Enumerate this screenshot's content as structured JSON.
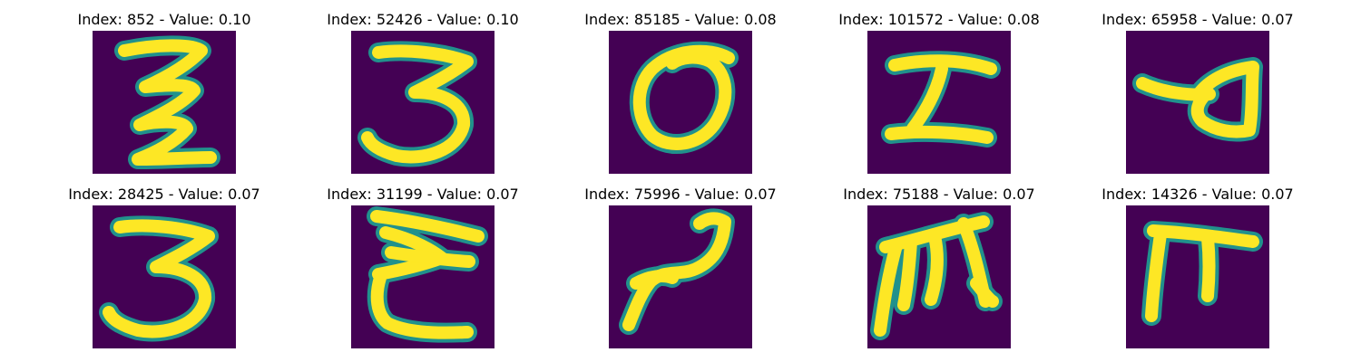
{
  "figure": {
    "panels": [
      {
        "title": "Index: 852 - Value: 0.10",
        "glyph": "z-loops"
      },
      {
        "title": "Index: 52426 - Value: 0.10",
        "glyph": "three"
      },
      {
        "title": "Index: 85185 - Value: 0.08",
        "glyph": "zero"
      },
      {
        "title": "Index: 101572 - Value: 0.08",
        "glyph": "i-beam"
      },
      {
        "title": "Index: 65958 - Value: 0.07",
        "glyph": "loop-stroke"
      },
      {
        "title": "Index: 28425 - Value: 0.07",
        "glyph": "three"
      },
      {
        "title": "Index: 31199 - Value: 0.07",
        "glyph": "e-stack"
      },
      {
        "title": "Index: 75996 - Value: 0.07",
        "glyph": "tilde-hook"
      },
      {
        "title": "Index: 75188 - Value: 0.07",
        "glyph": "m-shape"
      },
      {
        "title": "Index: 14326 - Value: 0.07",
        "glyph": "pi"
      }
    ],
    "colors": {
      "background": "#440154",
      "stroke_edge": "#21918c",
      "stroke_core": "#fde725"
    }
  }
}
